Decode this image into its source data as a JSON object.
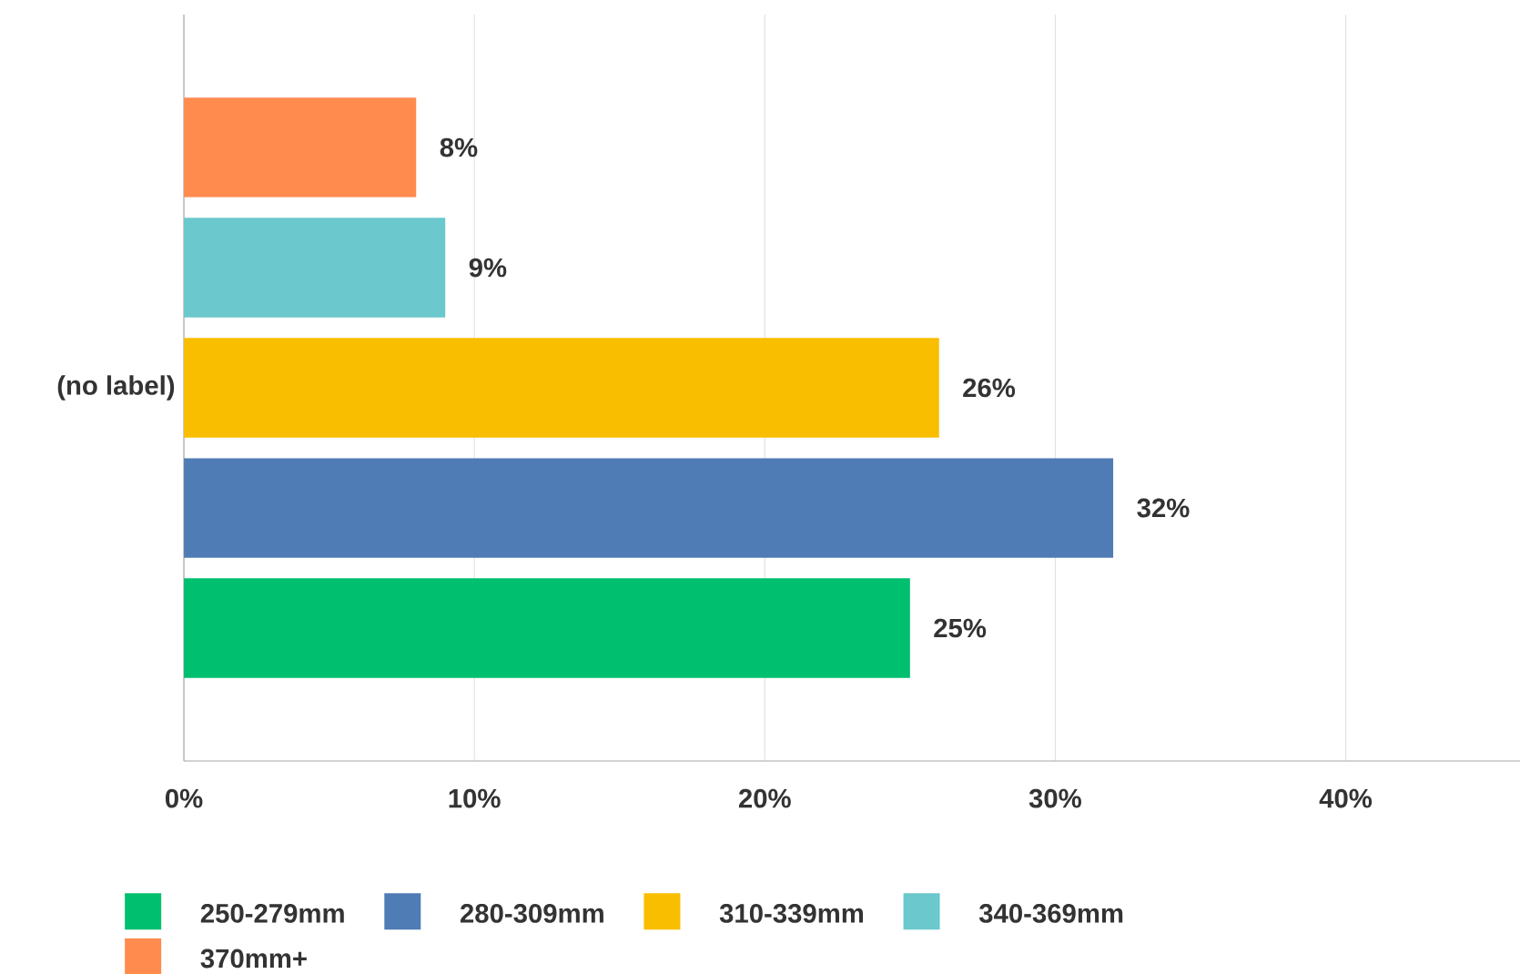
{
  "chart_data": {
    "type": "bar",
    "orientation": "horizontal",
    "categories": [
      "(no label)"
    ],
    "series": [
      {
        "name": "250-279mm",
        "color": "#00bf6f",
        "values": [
          25
        ],
        "value_labels": [
          "25%"
        ]
      },
      {
        "name": "280-309mm",
        "color": "#507cb6",
        "values": [
          32
        ],
        "value_labels": [
          "32%"
        ]
      },
      {
        "name": "310-339mm",
        "color": "#f9be00",
        "values": [
          26
        ],
        "value_labels": [
          "26%"
        ]
      },
      {
        "name": "340-369mm",
        "color": "#6bc8cd",
        "values": [
          9
        ],
        "value_labels": [
          "9%"
        ]
      },
      {
        "name": "370mm+",
        "color": "#ff8b4f",
        "values": [
          8
        ],
        "value_labels": [
          "8%"
        ]
      }
    ],
    "xlim": [
      0,
      46
    ],
    "xticks": [
      {
        "value": 0,
        "label": "0%"
      },
      {
        "value": 10,
        "label": "10%"
      },
      {
        "value": 20,
        "label": "20%"
      },
      {
        "value": 30,
        "label": "30%"
      },
      {
        "value": 40,
        "label": "40%"
      }
    ],
    "grid": "x",
    "legend": "bottom"
  }
}
